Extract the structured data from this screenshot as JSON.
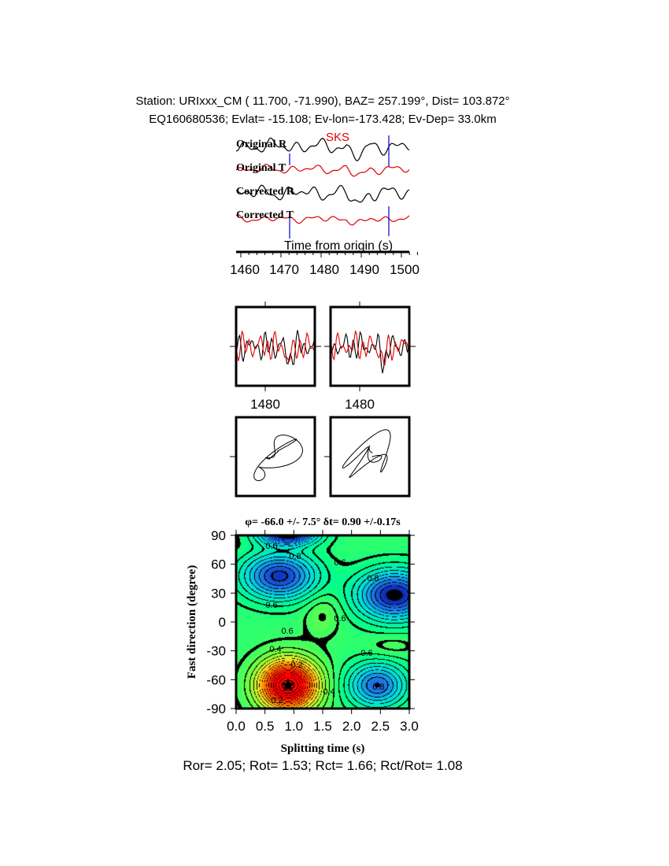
{
  "header": {
    "line1": "Station: URIxxx_CM (  11.700,  -71.990), BAZ=  257.199°, Dist=  103.872°",
    "line2": "EQ160680536; Evlat= -15.108; Ev-lon=-173.428; Ev-Dep= 33.0km"
  },
  "traces": {
    "labels": [
      "Original R",
      "Original T",
      "Corrected R",
      "Corrected T"
    ],
    "phase_label": "SKS",
    "xlabel": "Time from origin (s)",
    "xticks": [
      "1460",
      "1470",
      "1480",
      "1490",
      "1500"
    ],
    "colors": {
      "radial": "#000000",
      "transverse": "#e00000",
      "picks": "#0000cc"
    }
  },
  "waveform_panels": {
    "tick_label": "1480"
  },
  "grid_search": {
    "title": "φ= -66.0 +/- 7.5° δt= 0.90 +/-0.17s",
    "xlabel": "Splitting time (s)",
    "ylabel": "Fast direction (degree)",
    "contour_labels": [
      "0.6",
      "0.8",
      "0.6",
      "0.6",
      "0.6",
      "0.8",
      "0.6",
      "0.4",
      "0.2",
      "0.2",
      "0.4",
      "0.8",
      "0.6"
    ],
    "colors": {
      "low": "#ff0000",
      "mid": "#00ff7f",
      "high": "#0000a0",
      "star": "#000000"
    }
  },
  "footer": {
    "text": "Ror= 2.05; Rot= 1.53; Rct= 1.66; Rct/Rot= 1.08"
  },
  "chart_data": {
    "type": "heatmap",
    "title": "φ= -66.0 +/- 7.5° δt= 0.90 +/-0.17s",
    "xlabel": "Splitting time (s)",
    "ylabel": "Fast direction (degree)",
    "xlim": [
      0,
      3
    ],
    "ylim": [
      -90,
      90
    ],
    "xticks": [
      0.0,
      0.5,
      1.0,
      1.5,
      2.0,
      2.5,
      3.0
    ],
    "yticks": [
      -90,
      -60,
      -30,
      0,
      30,
      60,
      90
    ],
    "best_fit": {
      "fast_direction": -66.0,
      "fast_direction_err": 7.5,
      "delay_time": 0.9,
      "delay_time_err": 0.17
    },
    "blobs": [
      {
        "x": 0.9,
        "y": -66,
        "sx": 0.35,
        "sy": 18,
        "amp": -0.75
      },
      {
        "x": 0.75,
        "y": 48,
        "sx": 0.45,
        "sy": 17,
        "amp": 0.45
      },
      {
        "x": 2.75,
        "y": 28,
        "sx": 0.45,
        "sy": 18,
        "amp": 0.5
      },
      {
        "x": 2.45,
        "y": -66,
        "sx": 0.35,
        "sy": 16,
        "amp": 0.38
      },
      {
        "x": 0.9,
        "y": 92,
        "sx": 0.35,
        "sy": 8,
        "amp": 0.55
      },
      {
        "x": 1.5,
        "y": 8,
        "sx": 0.22,
        "sy": 15,
        "amp": -0.08
      },
      {
        "x": 2.7,
        "y": -25,
        "sx": 0.3,
        "sy": 8,
        "amp": -0.05
      }
    ],
    "base_level": 0.62
  }
}
